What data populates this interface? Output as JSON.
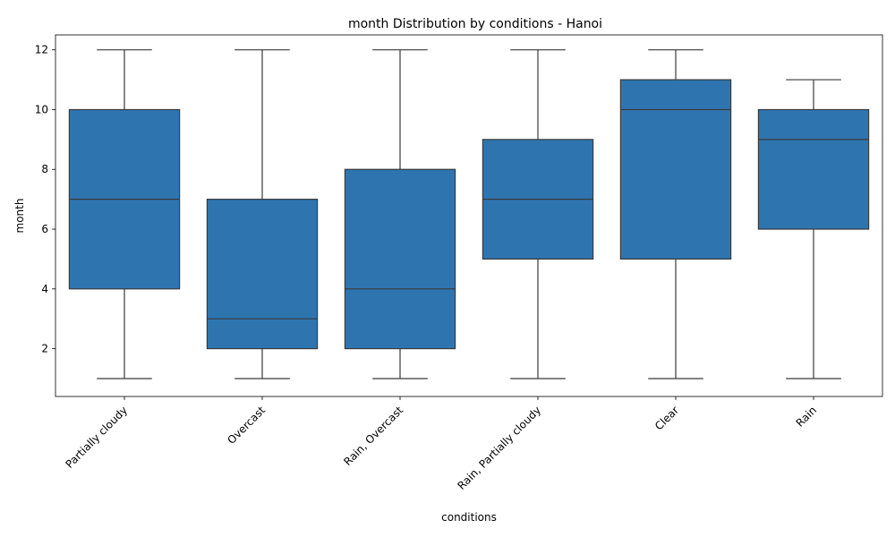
{
  "chart_data": {
    "type": "box",
    "title": "month Distribution by conditions - Hanoi",
    "xlabel": "conditions",
    "ylabel": "month",
    "ylim": [
      0.4,
      12.5
    ],
    "yticks": [
      2,
      4,
      6,
      8,
      10,
      12
    ],
    "grid": false,
    "box_color": "#2e75b0",
    "line_color": "#3a3a3a",
    "categories": [
      "Partially cloudy",
      "Overcast",
      "Rain, Overcast",
      "Rain, Partially cloudy",
      "Clear",
      "Rain"
    ],
    "boxes": [
      {
        "min": 1,
        "q1": 4,
        "median": 7,
        "q3": 10,
        "max": 12
      },
      {
        "min": 1,
        "q1": 2,
        "median": 3,
        "q3": 7,
        "max": 12
      },
      {
        "min": 1,
        "q1": 2,
        "median": 4,
        "q3": 8,
        "max": 12
      },
      {
        "min": 1,
        "q1": 5,
        "median": 7,
        "q3": 9,
        "max": 12
      },
      {
        "min": 1,
        "q1": 5,
        "median": 10,
        "q3": 11,
        "max": 12
      },
      {
        "min": 1,
        "q1": 6,
        "median": 9,
        "q3": 10,
        "max": 11
      }
    ]
  }
}
